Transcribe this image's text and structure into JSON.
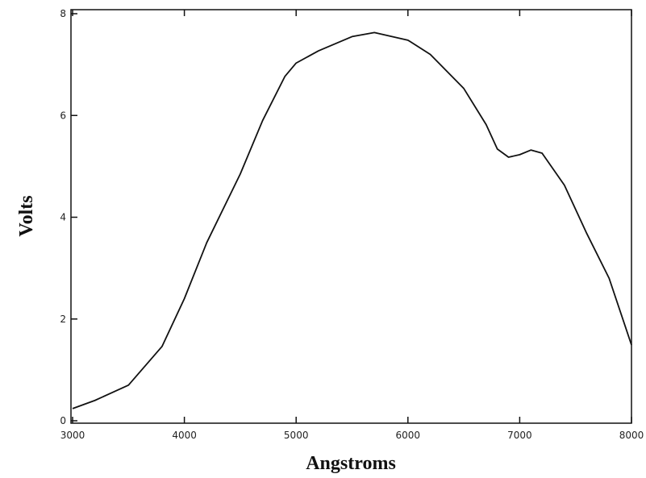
{
  "chart_data": {
    "type": "line",
    "x_label": "Angstroms",
    "y_label": "Volts",
    "x": [
      3000,
      3200,
      3500,
      3800,
      4000,
      4200,
      4500,
      4700,
      4900,
      5000,
      5200,
      5500,
      5700,
      6000,
      6200,
      6500,
      6700,
      6800,
      6900,
      7000,
      7100,
      7200,
      7400,
      7600,
      7800,
      8000
    ],
    "series": [
      {
        "color": "#111111",
        "values": [
          0.24,
          0.4,
          0.7,
          1.46,
          2.4,
          3.5,
          4.85,
          5.9,
          6.77,
          7.03,
          7.27,
          7.55,
          7.63,
          7.48,
          7.2,
          6.53,
          5.82,
          5.34,
          5.18,
          5.23,
          5.32,
          5.26,
          4.63,
          3.68,
          2.8,
          1.49
        ]
      }
    ],
    "xlim": [
      3000,
      8000
    ],
    "xticks": [
      3000,
      4000,
      5000,
      6000,
      7000,
      8000
    ],
    "ylim": [
      0,
      8
    ],
    "yticks": [
      0,
      2,
      4,
      6,
      8
    ]
  }
}
